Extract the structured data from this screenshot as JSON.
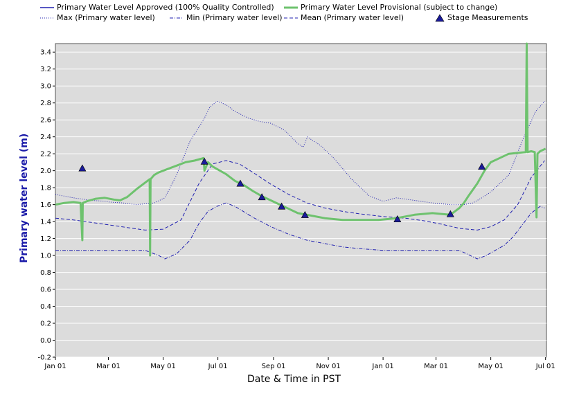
{
  "chart_data": {
    "type": "line",
    "title": "",
    "xlabel": "Date & Time in PST",
    "ylabel": "Primary water level (m)",
    "ylim": [
      -0.2,
      3.5
    ],
    "xlim_days": [
      0,
      547
    ],
    "y_ticks": [
      -0.2,
      0.0,
      0.2,
      0.4,
      0.6,
      0.8,
      1.0,
      1.2,
      1.4,
      1.6,
      1.8,
      2.0,
      2.2,
      2.4,
      2.6,
      2.8,
      3.0,
      3.2,
      3.4
    ],
    "y_tick_labels": [
      "-0.2",
      "0.0",
      "0.2",
      "0.4",
      "0.6",
      "0.8",
      "1.0",
      "1.2",
      "1.4",
      "1.6",
      "1.8",
      "2.0",
      "2.2",
      "2.4",
      "2.6",
      "2.8",
      "3.0",
      "3.2",
      "3.4"
    ],
    "x_ticks": [
      {
        "label": "Jan 01",
        "day": 0
      },
      {
        "label": "Mar 01",
        "day": 59
      },
      {
        "label": "May 01",
        "day": 120
      },
      {
        "label": "Jul 01",
        "day": 181
      },
      {
        "label": "Sep 01",
        "day": 243
      },
      {
        "label": "Nov 01",
        "day": 304
      },
      {
        "label": "Jan 01",
        "day": 365
      },
      {
        "label": "Mar 01",
        "day": 424
      },
      {
        "label": "May 01",
        "day": 485
      },
      {
        "label": "Jul 01",
        "day": 546
      }
    ],
    "grid": true,
    "legend_position": "top",
    "legend": [
      {
        "label": "Primary Water Level Approved (100% Quality Controlled)",
        "style": "solid",
        "color": "#2020b0"
      },
      {
        "label": "Primary Water Level Provisional (subject to change)",
        "style": "solid-thick",
        "color": "#6ec26e"
      },
      {
        "label": "Max (Primary water level)",
        "style": "dotted",
        "color": "#2020b0"
      },
      {
        "label": "Min (Primary water level)",
        "style": "dashdot",
        "color": "#2020b0"
      },
      {
        "label": "Mean (Primary water level)",
        "style": "dashed",
        "color": "#2020b0"
      },
      {
        "label": "Stage Measurements",
        "style": "triangle",
        "color": "#1a1a9a"
      }
    ],
    "series": [
      {
        "name": "Max (Primary water level)",
        "x": [
          0,
          20,
          40,
          55,
          60,
          75,
          90,
          110,
          122,
          135,
          150,
          165,
          172,
          180,
          190,
          200,
          215,
          228,
          240,
          255,
          270,
          276,
          281,
          286,
          295,
          310,
          330,
          350,
          365,
          380,
          400,
          420,
          440,
          455,
          465,
          475,
          485,
          495,
          505,
          520,
          535,
          545
        ],
        "y": [
          1.72,
          1.68,
          1.65,
          1.64,
          1.63,
          1.62,
          1.6,
          1.62,
          1.68,
          1.95,
          2.35,
          2.6,
          2.75,
          2.82,
          2.78,
          2.7,
          2.62,
          2.58,
          2.56,
          2.48,
          2.32,
          2.28,
          2.4,
          2.36,
          2.3,
          2.15,
          1.9,
          1.7,
          1.64,
          1.68,
          1.65,
          1.62,
          1.6,
          1.6,
          1.62,
          1.68,
          1.75,
          1.85,
          1.95,
          2.35,
          2.7,
          2.82
        ]
      },
      {
        "name": "Mean (Primary water level)",
        "x": [
          0,
          20,
          40,
          60,
          80,
          100,
          120,
          140,
          160,
          175,
          190,
          205,
          220,
          240,
          260,
          280,
          300,
          320,
          340,
          365,
          390,
          410,
          430,
          450,
          470,
          485,
          500,
          515,
          530,
          545
        ],
        "y": [
          1.44,
          1.42,
          1.39,
          1.36,
          1.33,
          1.3,
          1.31,
          1.42,
          1.85,
          2.08,
          2.12,
          2.08,
          1.98,
          1.84,
          1.72,
          1.62,
          1.56,
          1.52,
          1.49,
          1.46,
          1.44,
          1.41,
          1.37,
          1.32,
          1.3,
          1.34,
          1.42,
          1.6,
          1.92,
          2.12
        ]
      },
      {
        "name": "Min (Primary water level)",
        "x": [
          0,
          20,
          40,
          60,
          80,
          100,
          115,
          122,
          135,
          150,
          160,
          170,
          180,
          190,
          200,
          220,
          240,
          260,
          280,
          300,
          320,
          340,
          365,
          390,
          410,
          430,
          450,
          462,
          470,
          480,
          490,
          500,
          510,
          520,
          530,
          540,
          545
        ],
        "y": [
          1.06,
          1.06,
          1.06,
          1.06,
          1.06,
          1.06,
          1.0,
          0.96,
          1.02,
          1.18,
          1.38,
          1.52,
          1.58,
          1.62,
          1.58,
          1.45,
          1.34,
          1.25,
          1.18,
          1.14,
          1.1,
          1.08,
          1.06,
          1.06,
          1.06,
          1.06,
          1.06,
          1.0,
          0.96,
          1.0,
          1.06,
          1.12,
          1.22,
          1.36,
          1.5,
          1.58,
          1.56
        ]
      },
      {
        "name": "Primary Water Level Provisional (subject to change)",
        "x": [
          0,
          10,
          20,
          28,
          30,
          30.5,
          35,
          45,
          55,
          65,
          72,
          80,
          90,
          100,
          105,
          105.5,
          106,
          110,
          115,
          125,
          135,
          145,
          155,
          162,
          165,
          166,
          170,
          175,
          180,
          190,
          200,
          210,
          220,
          230,
          240,
          250,
          260,
          270,
          285,
          300,
          320,
          340,
          360,
          380,
          400,
          420,
          430,
          440,
          450,
          455,
          460,
          470,
          478,
          485,
          495,
          505,
          515,
          524,
          525,
          526,
          530,
          534,
          536,
          537,
          540,
          546
        ],
        "y": [
          1.6,
          1.62,
          1.63,
          1.62,
          1.18,
          1.62,
          1.64,
          1.67,
          1.68,
          1.66,
          1.65,
          1.69,
          1.78,
          1.86,
          1.9,
          1.0,
          1.9,
          1.95,
          1.98,
          2.02,
          2.06,
          2.1,
          2.12,
          2.14,
          2.15,
          2.0,
          2.1,
          2.05,
          2.02,
          1.96,
          1.88,
          1.83,
          1.76,
          1.7,
          1.65,
          1.6,
          1.55,
          1.5,
          1.47,
          1.44,
          1.42,
          1.42,
          1.42,
          1.44,
          1.48,
          1.5,
          1.49,
          1.48,
          1.56,
          1.62,
          1.7,
          1.85,
          2.0,
          2.1,
          2.15,
          2.2,
          2.21,
          2.22,
          3.5,
          2.22,
          2.23,
          2.22,
          1.45,
          2.2,
          2.23,
          2.26
        ]
      }
    ],
    "stage_measurements": {
      "name": "Stage Measurements",
      "x": [
        30,
        166,
        206,
        230,
        252,
        278,
        381,
        440,
        475
      ],
      "y": [
        2.02,
        2.1,
        1.84,
        1.68,
        1.57,
        1.47,
        1.42,
        1.48,
        2.04
      ]
    }
  }
}
